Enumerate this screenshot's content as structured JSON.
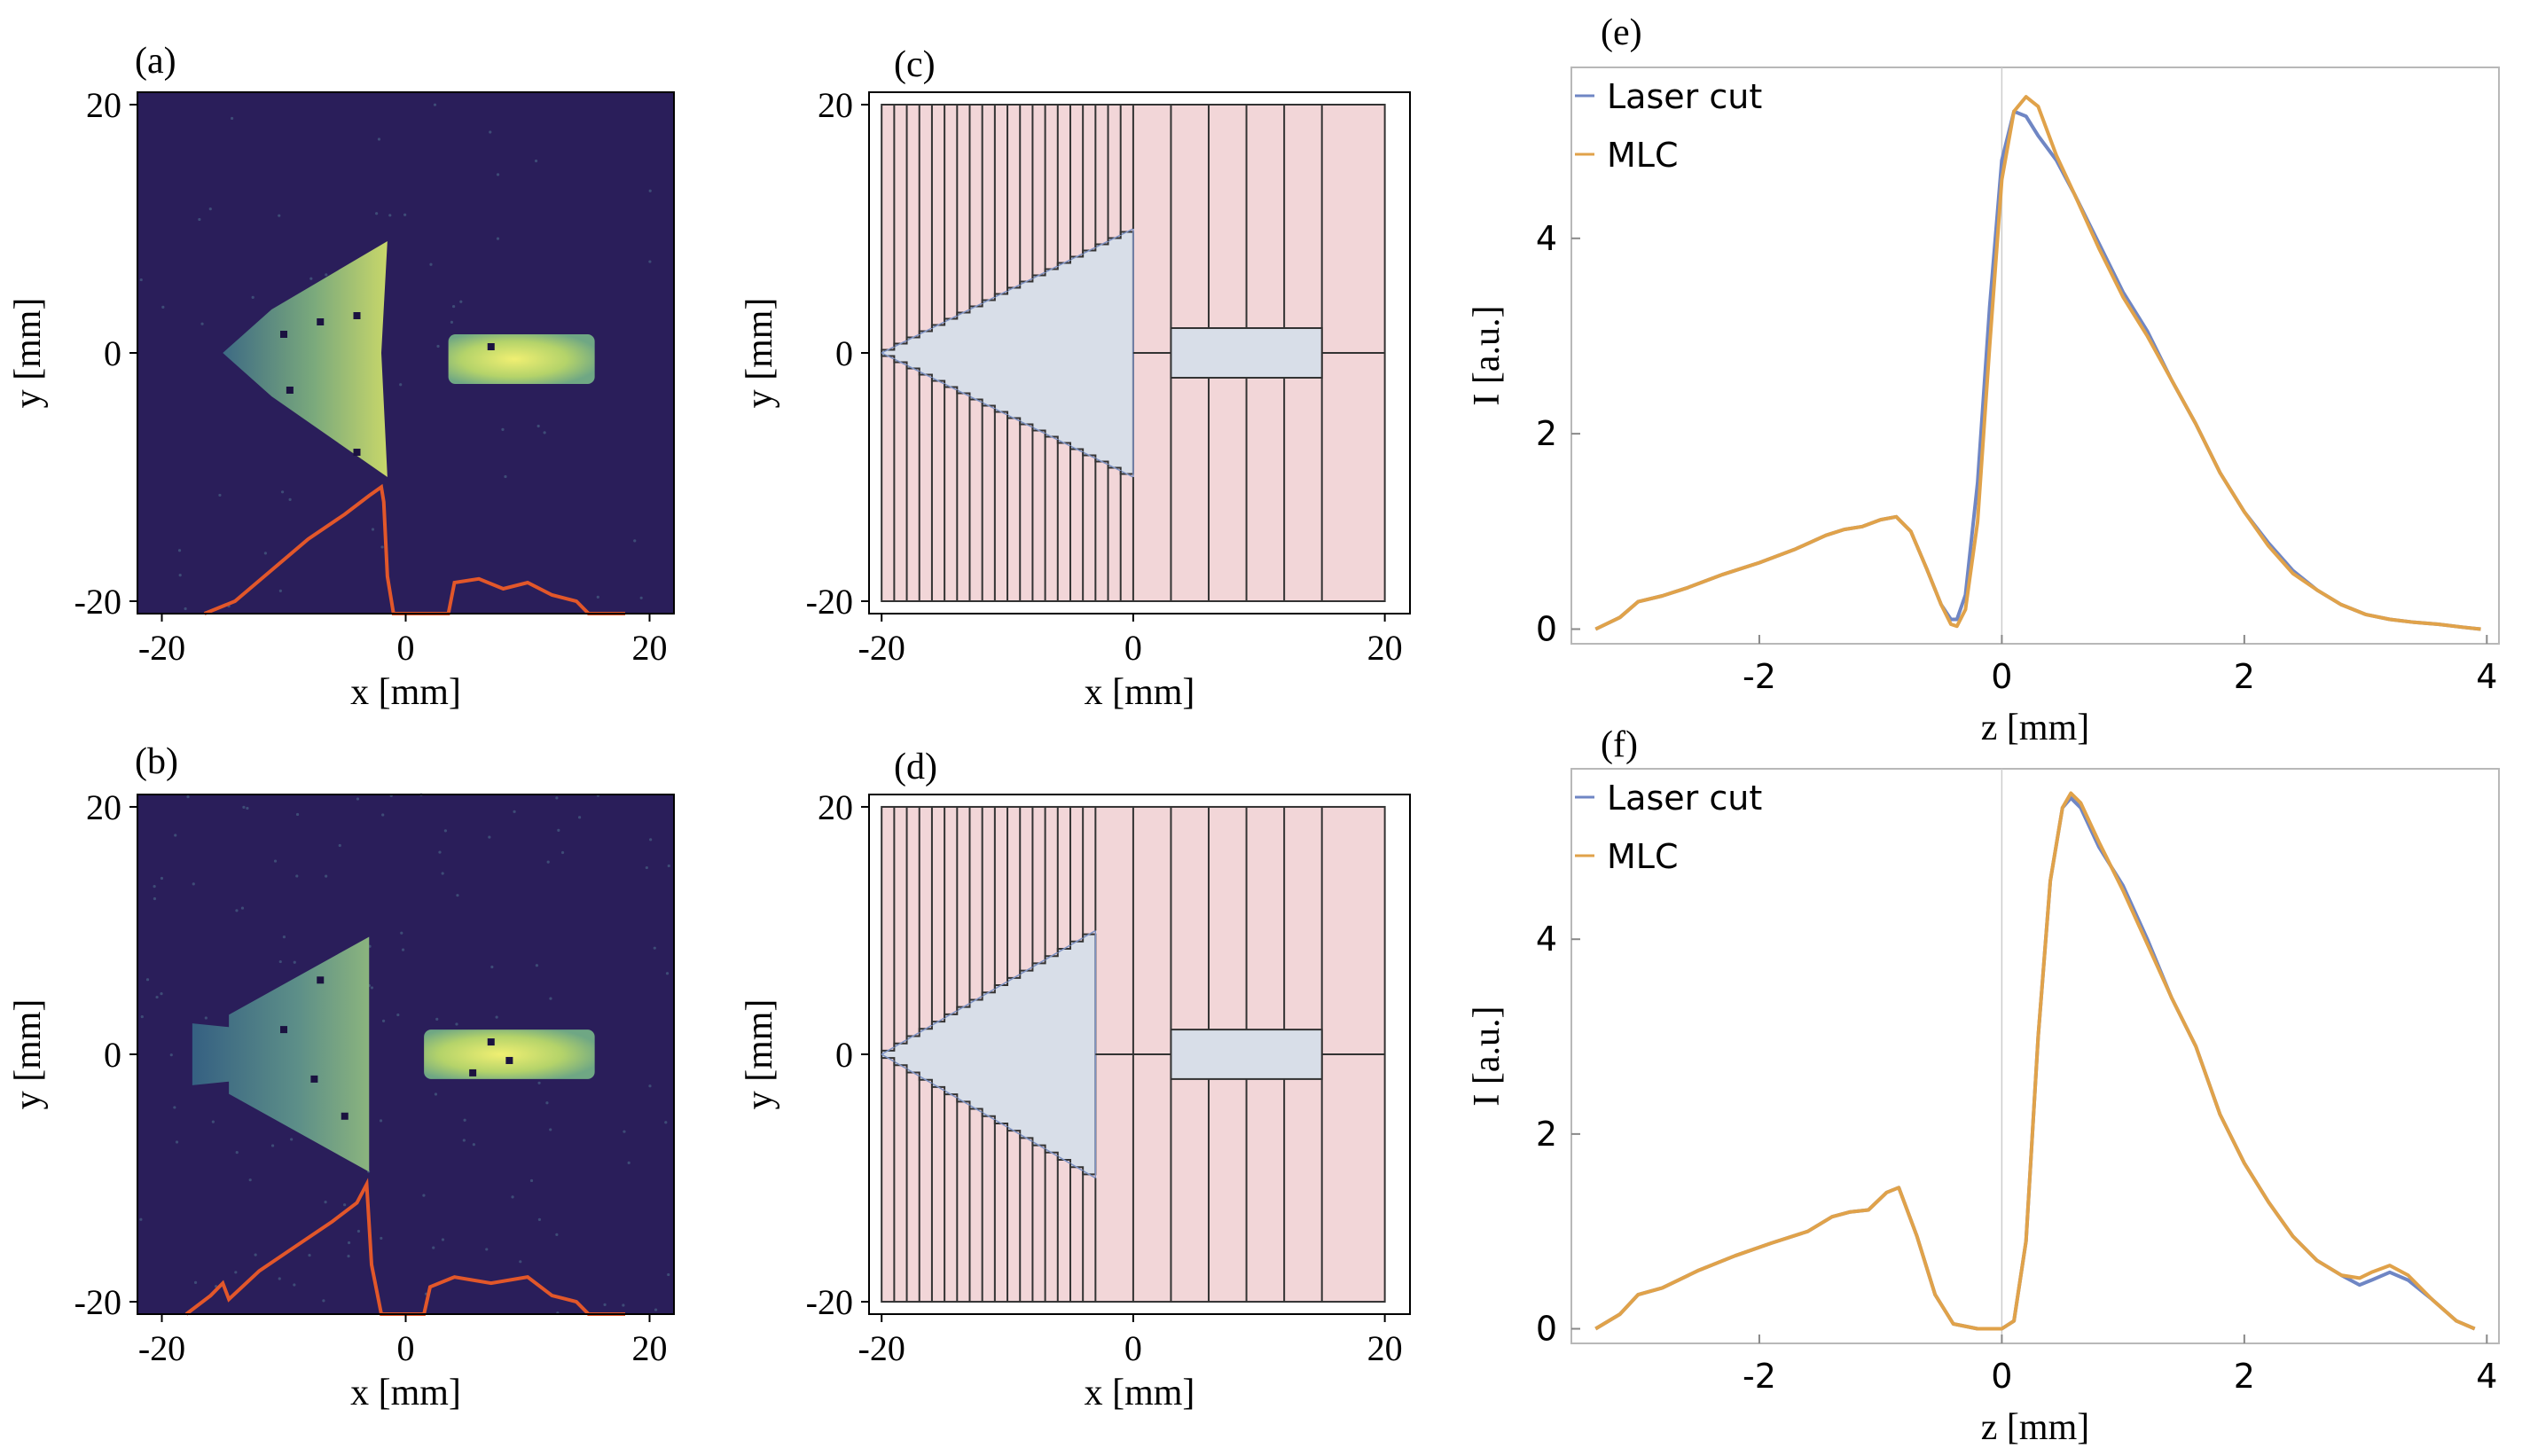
{
  "colors": {
    "image_bg": "#2a1e5a",
    "beam_low": "#3d6a84",
    "beam_high": "#e8ea6a",
    "profile_line": "#e2572a",
    "mlc_leaf": "#f2d6d8",
    "mlc_aperture": "#d8dee8",
    "laser_cut": "#6f86c4",
    "mlc_curve": "#e0a24a",
    "axis": "#000000"
  },
  "chart_data": [
    {
      "panel": "a",
      "type": "heatmap",
      "label": "(a)",
      "xlabel": "x [mm]",
      "ylabel": "y [mm]",
      "xlim": [
        -22,
        22
      ],
      "ylim": [
        -21,
        21
      ],
      "xticks": [
        -20,
        0,
        20
      ],
      "yticks": [
        -20,
        0,
        20
      ],
      "shapes": {
        "triangle": {
          "tip": [
            -15,
            0
          ],
          "base_x": -1.5,
          "base_top": 9,
          "base_bottom": -10
        },
        "rectangle": {
          "x": [
            3.5,
            15.5
          ],
          "y": [
            -2.5,
            1.5
          ]
        }
      },
      "profile": {
        "x": [
          -16.5,
          -14,
          -11,
          -8,
          -5,
          -3,
          -2,
          -1.8,
          -1.5,
          -1,
          0,
          1,
          3.5,
          4,
          6,
          8,
          10,
          12,
          14,
          15,
          16,
          18
        ],
        "y": [
          -21,
          -20,
          -17.5,
          -15,
          -13,
          -11.5,
          -10.8,
          -12,
          -18,
          -21,
          -21,
          -21,
          -21,
          -18.5,
          -18.2,
          -19,
          -18.5,
          -19.5,
          -20,
          -21,
          -21,
          -21
        ]
      }
    },
    {
      "panel": "b",
      "type": "heatmap",
      "label": "(b)",
      "xlabel": "x [mm]",
      "ylabel": "y [mm]",
      "xlim": [
        -22,
        22
      ],
      "ylim": [
        -21,
        21
      ],
      "xticks": [
        -20,
        0,
        20
      ],
      "yticks": [
        -20,
        0,
        20
      ],
      "shapes": {
        "triangle": {
          "tip": [
            -16.5,
            0
          ],
          "base_x": -3,
          "base_top": 9.5,
          "base_bottom": -9.5,
          "notch": [
            -17.5,
            -14.5
          ]
        },
        "rectangle": {
          "x": [
            1.5,
            15.5
          ],
          "y": [
            -2,
            2
          ]
        }
      },
      "profile": {
        "x": [
          -18,
          -16,
          -15,
          -14.5,
          -12,
          -9,
          -6,
          -4,
          -3.2,
          -2.8,
          -2,
          0,
          1.5,
          2,
          4,
          7,
          10,
          12,
          14,
          15,
          18
        ],
        "y": [
          -21,
          -19.5,
          -18.5,
          -19.8,
          -17.5,
          -15.5,
          -13.5,
          -12,
          -10.5,
          -17,
          -21,
          -21,
          -21,
          -18.8,
          -18,
          -18.5,
          -18,
          -19.5,
          -20,
          -21,
          -21
        ]
      }
    },
    {
      "panel": "c",
      "type": "diagram",
      "label": "(c)",
      "xlabel": "x [mm]",
      "ylabel": "y [mm]",
      "xlim": [
        -21,
        22
      ],
      "ylim": [
        -21,
        21
      ],
      "xticks": [
        -20,
        0,
        20
      ],
      "yticks": [
        -20,
        0,
        20
      ],
      "leaf_edges": [
        -20,
        -19,
        -18,
        -17,
        -16,
        -15,
        -14,
        -13,
        -12,
        -11,
        -10,
        -9,
        -8,
        -7,
        -6,
        -5,
        -4,
        -3,
        -2,
        -1,
        0,
        3,
        6,
        9,
        12,
        15,
        20
      ],
      "field": {
        "x": [
          -20,
          20
        ],
        "y": [
          -20,
          20
        ]
      },
      "triangle": {
        "tip": [
          -20,
          0
        ],
        "base_x": 0,
        "half_height": 10
      },
      "rectangle": {
        "x": [
          3,
          15
        ],
        "y": [
          -2,
          2
        ]
      }
    },
    {
      "panel": "d",
      "type": "diagram",
      "label": "(d)",
      "xlabel": "x [mm]",
      "ylabel": "y [mm]",
      "xlim": [
        -21,
        22
      ],
      "ylim": [
        -21,
        21
      ],
      "xticks": [
        -20,
        0,
        20
      ],
      "yticks": [
        -20,
        0,
        20
      ],
      "leaf_edges": [
        -20,
        -19,
        -18,
        -17,
        -16,
        -15,
        -14,
        -13,
        -12,
        -11,
        -10,
        -9,
        -8,
        -7,
        -6,
        -5,
        -4,
        -3,
        0,
        3,
        6,
        9,
        12,
        15,
        20
      ],
      "field": {
        "x": [
          -20,
          20
        ],
        "y": [
          -20,
          20
        ]
      },
      "triangle": {
        "tip": [
          -20,
          0
        ],
        "base_x": -3,
        "half_height": 10
      },
      "rectangle": {
        "x": [
          3,
          15
        ],
        "y": [
          -2,
          2
        ]
      }
    },
    {
      "panel": "e",
      "type": "line",
      "label": "(e)",
      "xlabel": "z [mm]",
      "ylabel": "I [a.u.]",
      "xlim": [
        -3.55,
        4.1
      ],
      "ylim": [
        -0.15,
        5.75
      ],
      "xticks": [
        -2,
        0,
        2,
        4
      ],
      "yticks": [
        0,
        2,
        4
      ],
      "legend_position": "top-left",
      "series": [
        {
          "name": "Laser cut",
          "x": [
            -3.35,
            -3.15,
            -3.0,
            -2.8,
            -2.6,
            -2.3,
            -2.0,
            -1.7,
            -1.45,
            -1.3,
            -1.15,
            -1.0,
            -0.87,
            -0.75,
            -0.62,
            -0.5,
            -0.42,
            -0.37,
            -0.3,
            -0.2,
            -0.1,
            0.0,
            0.1,
            0.2,
            0.3,
            0.45,
            0.6,
            0.8,
            1.0,
            1.2,
            1.4,
            1.6,
            1.8,
            2.0,
            2.2,
            2.4,
            2.6,
            2.8,
            3.0,
            3.2,
            3.4,
            3.6,
            3.8,
            3.95
          ],
          "y": [
            0.0,
            0.12,
            0.28,
            0.34,
            0.42,
            0.56,
            0.68,
            0.82,
            0.96,
            1.02,
            1.05,
            1.12,
            1.15,
            1.0,
            0.62,
            0.25,
            0.1,
            0.1,
            0.35,
            1.5,
            3.3,
            4.8,
            5.3,
            5.25,
            5.05,
            4.8,
            4.45,
            3.95,
            3.45,
            3.05,
            2.55,
            2.1,
            1.6,
            1.2,
            0.88,
            0.6,
            0.4,
            0.25,
            0.15,
            0.1,
            0.07,
            0.05,
            0.02,
            0.0
          ]
        },
        {
          "name": "MLC",
          "x": [
            -3.35,
            -3.15,
            -3.0,
            -2.8,
            -2.6,
            -2.3,
            -2.0,
            -1.7,
            -1.45,
            -1.3,
            -1.15,
            -1.0,
            -0.87,
            -0.75,
            -0.62,
            -0.5,
            -0.42,
            -0.37,
            -0.3,
            -0.2,
            -0.1,
            0.0,
            0.1,
            0.2,
            0.3,
            0.45,
            0.6,
            0.8,
            1.0,
            1.2,
            1.4,
            1.6,
            1.8,
            2.0,
            2.2,
            2.4,
            2.6,
            2.8,
            3.0,
            3.2,
            3.4,
            3.6,
            3.8,
            3.95
          ],
          "y": [
            0.0,
            0.12,
            0.28,
            0.34,
            0.42,
            0.56,
            0.68,
            0.82,
            0.96,
            1.02,
            1.05,
            1.12,
            1.15,
            1.0,
            0.62,
            0.25,
            0.05,
            0.03,
            0.2,
            1.1,
            2.9,
            4.6,
            5.3,
            5.45,
            5.35,
            4.85,
            4.45,
            3.9,
            3.4,
            3.0,
            2.55,
            2.1,
            1.6,
            1.2,
            0.85,
            0.57,
            0.4,
            0.25,
            0.15,
            0.1,
            0.07,
            0.05,
            0.02,
            0.0
          ]
        }
      ]
    },
    {
      "panel": "f",
      "type": "line",
      "label": "(f)",
      "xlabel": "z [mm]",
      "ylabel": "I [a.u.]",
      "xlim": [
        -3.55,
        4.1
      ],
      "ylim": [
        -0.15,
        5.75
      ],
      "xticks": [
        -2,
        0,
        2,
        4
      ],
      "yticks": [
        0,
        2,
        4
      ],
      "legend_position": "top-left",
      "series": [
        {
          "name": "Laser cut",
          "x": [
            -3.35,
            -3.15,
            -3.0,
            -2.8,
            -2.5,
            -2.2,
            -1.9,
            -1.6,
            -1.4,
            -1.25,
            -1.1,
            -0.95,
            -0.85,
            -0.7,
            -0.55,
            -0.4,
            -0.2,
            0.0,
            0.1,
            0.2,
            0.3,
            0.4,
            0.5,
            0.57,
            0.65,
            0.8,
            1.0,
            1.2,
            1.4,
            1.6,
            1.8,
            2.0,
            2.2,
            2.4,
            2.6,
            2.8,
            2.95,
            3.05,
            3.2,
            3.35,
            3.55,
            3.75,
            3.9
          ],
          "y": [
            0.0,
            0.15,
            0.35,
            0.42,
            0.6,
            0.75,
            0.88,
            1.0,
            1.15,
            1.2,
            1.22,
            1.4,
            1.45,
            0.95,
            0.35,
            0.05,
            0.0,
            0.0,
            0.08,
            0.9,
            3.0,
            4.6,
            5.35,
            5.45,
            5.35,
            4.95,
            4.55,
            4.0,
            3.4,
            2.9,
            2.2,
            1.7,
            1.3,
            0.95,
            0.7,
            0.55,
            0.45,
            0.5,
            0.58,
            0.5,
            0.3,
            0.08,
            0.0
          ]
        },
        {
          "name": "MLC",
          "x": [
            -3.35,
            -3.15,
            -3.0,
            -2.8,
            -2.5,
            -2.2,
            -1.9,
            -1.6,
            -1.4,
            -1.25,
            -1.1,
            -0.95,
            -0.85,
            -0.7,
            -0.55,
            -0.4,
            -0.2,
            0.0,
            0.1,
            0.2,
            0.3,
            0.4,
            0.5,
            0.57,
            0.65,
            0.8,
            1.0,
            1.2,
            1.4,
            1.6,
            1.8,
            2.0,
            2.2,
            2.4,
            2.6,
            2.8,
            2.95,
            3.05,
            3.2,
            3.35,
            3.55,
            3.75,
            3.9
          ],
          "y": [
            0.0,
            0.15,
            0.35,
            0.42,
            0.6,
            0.75,
            0.88,
            1.0,
            1.15,
            1.2,
            1.22,
            1.4,
            1.45,
            0.95,
            0.35,
            0.05,
            0.0,
            0.0,
            0.08,
            0.9,
            3.0,
            4.6,
            5.35,
            5.5,
            5.4,
            5.0,
            4.5,
            3.95,
            3.4,
            2.9,
            2.2,
            1.7,
            1.3,
            0.95,
            0.7,
            0.55,
            0.52,
            0.58,
            0.65,
            0.55,
            0.3,
            0.08,
            0.0
          ]
        }
      ]
    }
  ]
}
